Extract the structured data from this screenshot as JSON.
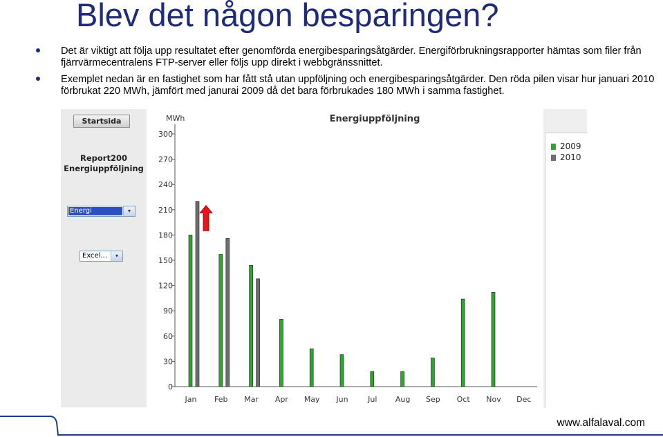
{
  "slide": {
    "title": "Blev det någon besparingen?",
    "bullets": [
      "Det är viktigt att följa upp resultatet efter genomförda energibesparingsåtgärder. Energiförbrukningsrapporter hämtas som filer från fjärrvärmecentralens FTP-server eller följs upp direkt i webbgränssnittet.",
      "Exemplet nedan är en fastighet som har fått stå utan uppföljning och energibesparingsåtgärder. Den röda pilen visar hur januari 2010 förbrukat 220 MWh, jämfört med janurai 2009 då det bara förbrukades 180 MWh i samma fastighet."
    ],
    "footer_url": "www.alfalaval.com"
  },
  "embed": {
    "start_button": "Startsida",
    "report_line1": "Report200",
    "report_line2": "Energiuppföljning",
    "select_measure": "Energi",
    "select_export": "Excel...",
    "arrow_glyph": "▾"
  },
  "colors": {
    "series_2009": "#2ea52e",
    "series_2010": "#6e6e6e",
    "highlight_arrow": "#e8141b",
    "title": "#1f2a7a"
  },
  "chart_data": {
    "type": "bar",
    "title": "Energiuppföljning",
    "ylabel": "MWh",
    "xlabel": "",
    "ylim": [
      0,
      300
    ],
    "yticks": [
      0,
      30,
      60,
      90,
      120,
      150,
      180,
      210,
      240,
      270,
      300
    ],
    "categories": [
      "Jan",
      "Feb",
      "Mar",
      "Apr",
      "May",
      "Jun",
      "Jul",
      "Aug",
      "Sep",
      "Oct",
      "Nov",
      "Dec"
    ],
    "series": [
      {
        "name": "2009",
        "values": [
          180,
          157,
          144,
          80,
          45,
          38,
          18,
          18,
          34,
          104,
          112,
          null
        ]
      },
      {
        "name": "2010",
        "values": [
          220,
          176,
          128,
          null,
          null,
          null,
          null,
          null,
          null,
          null,
          null,
          null
        ]
      }
    ],
    "grid": false,
    "legend_position": "right",
    "annotation": {
      "category": "Jan",
      "type": "red-up-arrow",
      "from_value": 180,
      "to_value": 220
    }
  }
}
